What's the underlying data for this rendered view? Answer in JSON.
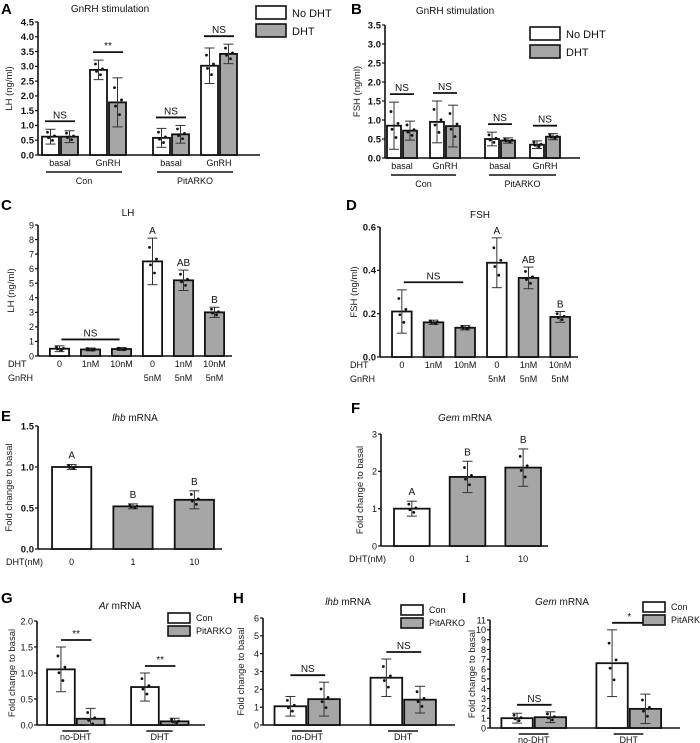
{
  "figure": {
    "panel_labels": [
      "A",
      "B",
      "C",
      "D",
      "E",
      "F",
      "G",
      "H",
      "I"
    ]
  },
  "colors": {
    "no_dht_fill": "#ffffff",
    "dht_fill": "#a6a6a6",
    "stroke": "#111111"
  },
  "chart_data": [
    {
      "panel": "A",
      "type": "bar",
      "title": "GnRH stimulation",
      "ylabel": "LH (ng/ml)",
      "xlabel": "",
      "ylim": [
        0,
        4.5
      ],
      "yticks": [
        "0.0",
        "0.5",
        "1.0",
        "1.5",
        "2.0",
        "2.5",
        "3.0",
        "3.5",
        "4.0",
        "4.5"
      ],
      "categories": [
        "basal",
        "GnRH",
        "basal",
        "GnRH"
      ],
      "groups": [
        {
          "label": "Con",
          "span": [
            0,
            1
          ]
        },
        {
          "label": "PitARKO",
          "span": [
            2,
            3
          ]
        }
      ],
      "legend": [
        "No DHT",
        "DHT"
      ],
      "series": [
        {
          "name": "No DHT",
          "values": [
            0.62,
            2.88,
            0.58,
            3.02
          ],
          "errors": [
            0.25,
            0.33,
            0.32,
            0.6
          ]
        },
        {
          "name": "DHT",
          "values": [
            0.62,
            1.78,
            0.7,
            3.42
          ],
          "errors": [
            0.2,
            0.83,
            0.3,
            0.33
          ]
        }
      ],
      "annotations": [
        "NS",
        "**",
        "NS",
        "NS"
      ]
    },
    {
      "panel": "B",
      "type": "bar",
      "title": "GnRH stimulation",
      "ylabel": "FSH (ng/ml)",
      "xlabel": "",
      "ylim": [
        0,
        3.5
      ],
      "yticks": [
        "0.0",
        "0.5",
        "1.0",
        "1.5",
        "2.0",
        "2.5",
        "3.0",
        "3.5"
      ],
      "categories": [
        "basal",
        "GnRH",
        "basal",
        "GnRH"
      ],
      "groups": [
        {
          "label": "Con",
          "span": [
            0,
            1
          ]
        },
        {
          "label": "PitARKO",
          "span": [
            2,
            3
          ]
        }
      ],
      "legend": [
        "No DHT",
        "DHT"
      ],
      "series": [
        {
          "name": "No DHT",
          "values": [
            0.85,
            0.95,
            0.5,
            0.35
          ],
          "errors": [
            0.62,
            0.55,
            0.18,
            0.1
          ]
        },
        {
          "name": "DHT",
          "values": [
            0.72,
            0.84,
            0.46,
            0.56
          ],
          "errors": [
            0.25,
            0.55,
            0.07,
            0.08
          ]
        }
      ],
      "annotations": [
        "NS",
        "NS",
        "NS",
        "NS"
      ]
    },
    {
      "panel": "C",
      "type": "bar",
      "title": "LH",
      "ylabel": "LH (ng/ml)",
      "ylim": [
        0,
        9
      ],
      "yticks": [
        "0",
        "1",
        "2",
        "3",
        "4",
        "5",
        "6",
        "7",
        "8",
        "9"
      ],
      "row_labels": [
        "DHT",
        "GnRH"
      ],
      "categories": [
        [
          "0",
          ""
        ],
        [
          "1nM",
          ""
        ],
        [
          "10nM",
          ""
        ],
        [
          "0",
          "5nM"
        ],
        [
          "1nM",
          "5nM"
        ],
        [
          "10nM",
          "5nM"
        ]
      ],
      "values": [
        0.5,
        0.45,
        0.48,
        6.5,
        5.2,
        3.0
      ],
      "errors": [
        0.2,
        0.1,
        0.1,
        1.6,
        0.7,
        0.35
      ],
      "fills": [
        "white",
        "gray",
        "gray",
        "white",
        "gray",
        "gray"
      ],
      "letters": [
        "",
        "",
        "",
        "A",
        "AB",
        "B"
      ],
      "annotations": [
        "NS"
      ]
    },
    {
      "panel": "D",
      "type": "bar",
      "title": "FSH",
      "ylabel": "FSH (ng/ml)",
      "ylim": [
        0,
        0.6
      ],
      "yticks": [
        "0.0",
        "0.2",
        "0.4",
        "0.6"
      ],
      "row_labels": [
        "DHT",
        "GnRH"
      ],
      "categories": [
        [
          "0",
          ""
        ],
        [
          "1nM",
          ""
        ],
        [
          "10nM",
          ""
        ],
        [
          "0",
          "5nM"
        ],
        [
          "1nM",
          "5nM"
        ],
        [
          "10nM",
          "5nM"
        ]
      ],
      "values": [
        0.21,
        0.16,
        0.135,
        0.435,
        0.365,
        0.185
      ],
      "errors": [
        0.1,
        0.01,
        0.01,
        0.115,
        0.05,
        0.025
      ],
      "fills": [
        "white",
        "gray",
        "gray",
        "white",
        "gray",
        "gray"
      ],
      "letters": [
        "",
        "",
        "",
        "A",
        "AB",
        "B"
      ],
      "annotations": [
        "NS"
      ]
    },
    {
      "panel": "E",
      "type": "bar",
      "title_italic": "lhb",
      "title_rest": " mRNA",
      "ylabel": "Fold change to basal",
      "ylim": [
        0,
        1.5
      ],
      "yticks": [
        "0.0",
        "0.5",
        "1.0",
        "1.5"
      ],
      "row_labels": [
        "DHT(nM)"
      ],
      "categories": [
        "0",
        "1",
        "10"
      ],
      "values": [
        1.0,
        0.52,
        0.6
      ],
      "errors": [
        0.03,
        0.03,
        0.11
      ],
      "fills": [
        "white",
        "gray",
        "gray"
      ],
      "letters": [
        "A",
        "B",
        "B"
      ]
    },
    {
      "panel": "F",
      "type": "bar",
      "title_italic": "Gem",
      "title_rest": " mRNA",
      "ylabel": "Fold change to basal",
      "ylim": [
        0,
        3
      ],
      "yticks": [
        "0",
        "1",
        "2",
        "3"
      ],
      "row_labels": [
        "DHT(nM)"
      ],
      "categories": [
        "0",
        "1",
        "10"
      ],
      "values": [
        1.0,
        1.85,
        2.1
      ],
      "errors": [
        0.2,
        0.42,
        0.5
      ],
      "fills": [
        "white",
        "gray",
        "gray"
      ],
      "letters": [
        "A",
        "B",
        "B"
      ]
    },
    {
      "panel": "G",
      "type": "bar",
      "title_italic": "Ar",
      "title_rest": " mRNA",
      "ylabel": "Fold change to basal",
      "ylim": [
        0,
        2.0
      ],
      "yticks": [
        "0.0",
        "0.5",
        "1.0",
        "1.5",
        "2.0"
      ],
      "categories": [
        "no-DHT",
        "DHT"
      ],
      "legend": [
        "Con",
        "PitARKO"
      ],
      "series": [
        {
          "name": "Con",
          "values": [
            1.07,
            0.73
          ],
          "errors": [
            0.43,
            0.27
          ]
        },
        {
          "name": "PitARKO",
          "values": [
            0.12,
            0.07
          ],
          "errors": [
            0.2,
            0.06
          ]
        }
      ],
      "annotations": [
        "**",
        "**"
      ]
    },
    {
      "panel": "H",
      "type": "bar",
      "title_italic": "lhb",
      "title_rest": " mRNA",
      "ylabel": "Fold change to basal",
      "ylim": [
        0,
        6
      ],
      "yticks": [
        "0",
        "1",
        "2",
        "3",
        "4",
        "5",
        "6"
      ],
      "categories": [
        "no-DHT",
        "DHT"
      ],
      "legend": [
        "Con",
        "PitARKO"
      ],
      "series": [
        {
          "name": "Con",
          "values": [
            1.05,
            2.65
          ],
          "errors": [
            0.55,
            1.05
          ]
        },
        {
          "name": "PitARKO",
          "values": [
            1.45,
            1.42
          ],
          "errors": [
            0.95,
            0.75
          ]
        }
      ],
      "annotations": [
        "NS",
        "NS"
      ]
    },
    {
      "panel": "I",
      "type": "bar",
      "title_italic": "Gem",
      "title_rest": " mRNA",
      "ylabel": "Fold change to basal",
      "ylim": [
        0,
        11
      ],
      "yticks": [
        "0",
        "1",
        "2",
        "3",
        "4",
        "5",
        "6",
        "7",
        "8",
        "9",
        "10",
        "11"
      ],
      "categories": [
        "no-DHT",
        "DHT"
      ],
      "legend": [
        "Con",
        "PitARKO"
      ],
      "series": [
        {
          "name": "Con",
          "values": [
            1.0,
            6.6
          ],
          "errors": [
            0.5,
            3.4
          ]
        },
        {
          "name": "PitARKO",
          "values": [
            1.1,
            1.95
          ],
          "errors": [
            0.55,
            1.5
          ]
        }
      ],
      "annotations": [
        "NS",
        "*"
      ]
    }
  ]
}
